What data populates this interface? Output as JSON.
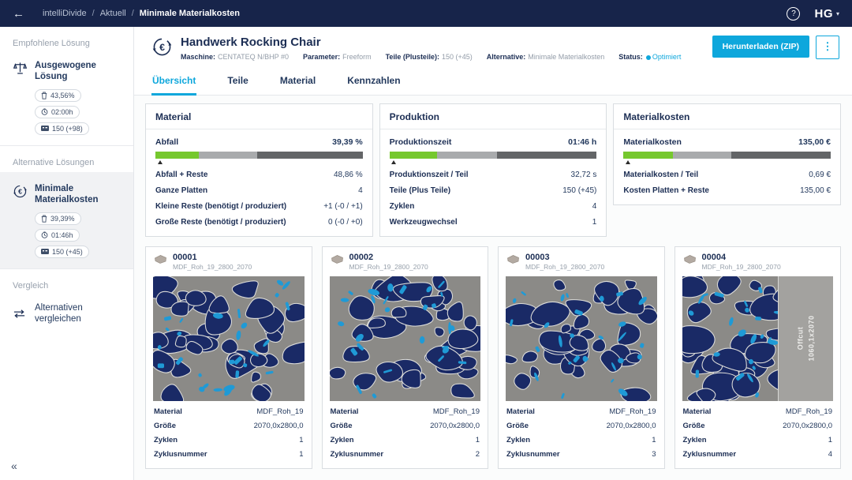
{
  "colors": {
    "topbar_bg": "#17244a",
    "accent": "#0ea7dc",
    "text_navy": "#1c2e54",
    "text_gray": "#97a0ab",
    "bar_green": "#76c82e",
    "bar_light": "#a9abad",
    "bar_dark": "#636567",
    "board_bg": "#8b8a87",
    "part_navy": "#1a2a66",
    "part_cyan": "#1f9ad6",
    "part_outline": "#dcdcd9",
    "offcut_bg": "#a3a29f"
  },
  "topbar": {
    "back_icon": "←",
    "breadcrumb": [
      "intelliDivide",
      "Aktuell",
      "Minimale Materialkosten"
    ],
    "separator": "/",
    "help_icon": "?",
    "logo": "HG",
    "logo_caret": "▾"
  },
  "sidebar": {
    "recommended_heading": "Empfohlene Lösung",
    "recommended": {
      "label": "Ausgewogene Lösung",
      "waste": "43,56%",
      "time": "02:00h",
      "parts": "150 (+98)"
    },
    "alternatives_heading": "Alternative Lösungen",
    "alternative": {
      "label": "Minimale Materialkosten",
      "waste": "39,39%",
      "time": "01:46h",
      "parts": "150 (+45)"
    },
    "compare_heading": "Vergleich",
    "compare_label": "Alternativen vergleichen",
    "collapse_icon": "«"
  },
  "header": {
    "title": "Handwerk Rocking Chair",
    "meta": [
      {
        "label": "Maschine:",
        "value": "CENTATEQ N/BHP #0"
      },
      {
        "label": "Parameter:",
        "value": "Freeform"
      },
      {
        "label": "Teile (Plusteile):",
        "value": "150 (+45)"
      },
      {
        "label": "Alternative:",
        "value": "Minimale Materialkosten"
      },
      {
        "label": "Status:",
        "value": "Optimiert"
      }
    ],
    "download_label": "Herunterladen (ZIP)",
    "kebab_icon": "⋮"
  },
  "tabs": [
    {
      "label": "Übersicht",
      "active": true
    },
    {
      "label": "Teile",
      "active": false
    },
    {
      "label": "Material",
      "active": false
    },
    {
      "label": "Kennzahlen",
      "active": false
    }
  ],
  "stat_cards": [
    {
      "title": "Material",
      "hero": {
        "label": "Abfall",
        "value": "39,39 %"
      },
      "bar": {
        "segments": [
          21,
          28,
          51
        ],
        "marker_pct": 1
      },
      "rows": [
        {
          "label": "Abfall + Reste",
          "value": "48,86 %"
        },
        {
          "label": "Ganze Platten",
          "value": "4"
        },
        {
          "label": "Kleine Reste (benötigt / produziert)",
          "value": "+1 (-0 / +1)"
        },
        {
          "label": "Große Reste (benötigt / produziert)",
          "value": "0 (-0 / +0)"
        }
      ]
    },
    {
      "title": "Produktion",
      "hero": {
        "label": "Produktionszeit",
        "value": "01:46 h"
      },
      "bar": {
        "segments": [
          23,
          29,
          48
        ],
        "marker_pct": 1
      },
      "rows": [
        {
          "label": "Produktionszeit / Teil",
          "value": "32,72 s"
        },
        {
          "label": "Teile (Plus Teile)",
          "value": "150 (+45)"
        },
        {
          "label": "Zyklen",
          "value": "4"
        },
        {
          "label": "Werkzeugwechsel",
          "value": "1"
        }
      ]
    },
    {
      "title": "Materialkosten",
      "hero": {
        "label": "Materialkosten",
        "value": "135,00 €"
      },
      "bar": {
        "segments": [
          24,
          28,
          48
        ],
        "marker_pct": 1
      },
      "rows": [
        {
          "label": "Materialkosten / Teil",
          "value": "0,69 €"
        },
        {
          "label": "Kosten Platten + Reste",
          "value": "135,00 €"
        }
      ]
    }
  ],
  "board_labels": {
    "material": "Material",
    "size": "Größe",
    "cycles": "Zyklen",
    "cycle_number": "Zyklusnummer"
  },
  "boards": [
    {
      "id": "00001",
      "subtitle": "MDF_Roh_19_2800_2070",
      "material": "MDF_Roh_19",
      "size": "2070,0x2800,0",
      "cycles": "1",
      "cycle_number": "1",
      "seed": 7,
      "offcut": null
    },
    {
      "id": "00002",
      "subtitle": "MDF_Roh_19_2800_2070",
      "material": "MDF_Roh_19",
      "size": "2070,0x2800,0",
      "cycles": "1",
      "cycle_number": "2",
      "seed": 13,
      "offcut": null
    },
    {
      "id": "00003",
      "subtitle": "MDF_Roh_19_2800_2070",
      "material": "MDF_Roh_19",
      "size": "2070,0x2800,0",
      "cycles": "1",
      "cycle_number": "3",
      "seed": 21,
      "offcut": null
    },
    {
      "id": "00004",
      "subtitle": "MDF_Roh_19_2800_2070",
      "material": "MDF_Roh_19",
      "size": "2070,0x2800,0",
      "cycles": "1",
      "cycle_number": "4",
      "seed": 29,
      "offcut": {
        "label": "Offcut",
        "size": "1060,1x2070",
        "fraction": 0.36
      }
    }
  ]
}
